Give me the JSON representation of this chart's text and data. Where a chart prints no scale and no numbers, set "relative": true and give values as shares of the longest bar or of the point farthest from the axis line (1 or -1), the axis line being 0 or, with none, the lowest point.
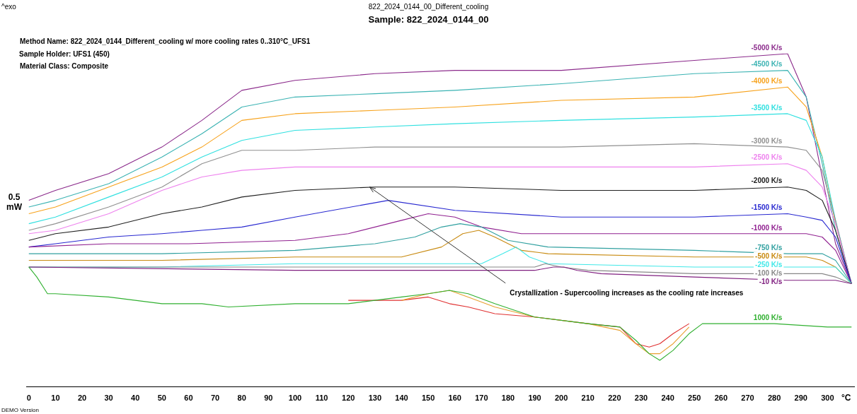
{
  "chart_data": {
    "type": "line",
    "title": "822_2024_0144_00_Different_cooling",
    "subtitle": "Sample: 822_2024_0144_00",
    "xlabel": "°C",
    "ylabel": "0.5 mW",
    "relative": true,
    "xlim": [
      -1,
      310
    ],
    "xticks": [
      0,
      10,
      20,
      30,
      40,
      50,
      60,
      70,
      80,
      90,
      100,
      110,
      120,
      130,
      140,
      150,
      160,
      170,
      180,
      190,
      200,
      210,
      220,
      230,
      240,
      250,
      260,
      270,
      280,
      290,
      300
    ],
    "grid": false,
    "legend": false,
    "marker": "none",
    "line_style": "solid",
    "annotations": [
      "^exo",
      "Method Name: 822_2024_0144_Different_cooling w/ more cooling rates 0..310°C_UFS1",
      "Sample Holder: UFS1 (450)",
      "Material Class: Composite",
      {
        "text": "Crystallization - Supercooling increases as the cooling rate increases",
        "x": 128,
        "y": 0.6
      },
      "DEMO Version"
    ],
    "series": [
      {
        "name": "-5000 K/s",
        "color": "#8b2a8b",
        "x": [
          0,
          10,
          30,
          50,
          65,
          80,
          100,
          130,
          160,
          200,
          250,
          285,
          292,
          298,
          303,
          309
        ],
        "values": [
          0.56,
          0.59,
          0.64,
          0.72,
          0.8,
          0.89,
          0.92,
          0.94,
          0.95,
          0.95,
          0.98,
          1,
          0.87,
          0.63,
          0.43,
          0.31
        ]
      },
      {
        "name": "-4500 K/s",
        "color": "#3bb3b3",
        "x": [
          0,
          10,
          30,
          50,
          65,
          80,
          100,
          130,
          160,
          200,
          250,
          285,
          292,
          298,
          303,
          309
        ],
        "values": [
          0.54,
          0.56,
          0.61,
          0.69,
          0.76,
          0.84,
          0.87,
          0.88,
          0.89,
          0.91,
          0.94,
          0.95,
          0.87,
          0.67,
          0.47,
          0.31
        ]
      },
      {
        "name": "-4000 K/s",
        "color": "#f7a21b",
        "x": [
          0,
          10,
          30,
          50,
          65,
          80,
          100,
          130,
          160,
          200,
          250,
          285,
          292,
          298,
          303,
          309
        ],
        "values": [
          0.52,
          0.54,
          0.6,
          0.66,
          0.72,
          0.8,
          0.82,
          0.83,
          0.84,
          0.86,
          0.87,
          0.9,
          0.84,
          0.69,
          0.49,
          0.31
        ]
      },
      {
        "name": "-3500 K/s",
        "color": "#30e0e0",
        "x": [
          0,
          10,
          30,
          50,
          65,
          80,
          100,
          130,
          160,
          200,
          250,
          285,
          292,
          298,
          303,
          309
        ],
        "values": [
          0.49,
          0.51,
          0.57,
          0.63,
          0.69,
          0.74,
          0.77,
          0.78,
          0.79,
          0.8,
          0.81,
          0.82,
          0.8,
          0.69,
          0.5,
          0.31
        ]
      },
      {
        "name": "-3000 K/s",
        "color": "#909090",
        "x": [
          0,
          10,
          30,
          50,
          65,
          80,
          100,
          130,
          160,
          200,
          250,
          285,
          292,
          298,
          303,
          309
        ],
        "values": [
          0.47,
          0.49,
          0.54,
          0.6,
          0.67,
          0.71,
          0.71,
          0.72,
          0.72,
          0.72,
          0.73,
          0.72,
          0.71,
          0.65,
          0.5,
          0.31
        ]
      },
      {
        "name": "-2500 K/s",
        "color": "#ee82ee",
        "x": [
          0,
          10,
          30,
          50,
          65,
          80,
          100,
          130,
          160,
          200,
          250,
          285,
          292,
          298,
          303,
          309
        ],
        "values": [
          0.46,
          0.47,
          0.52,
          0.59,
          0.63,
          0.65,
          0.66,
          0.66,
          0.66,
          0.66,
          0.66,
          0.67,
          0.65,
          0.6,
          0.49,
          0.31
        ]
      },
      {
        "name": "-2000 K/s",
        "color": "#202020",
        "x": [
          0,
          10,
          30,
          50,
          65,
          80,
          100,
          130,
          160,
          200,
          250,
          285,
          292,
          298,
          303,
          309
        ],
        "values": [
          0.44,
          0.46,
          0.48,
          0.52,
          0.54,
          0.57,
          0.59,
          0.6,
          0.6,
          0.59,
          0.59,
          0.6,
          0.59,
          0.56,
          0.47,
          0.31
        ]
      },
      {
        "name": "-1500 K/s",
        "color": "#2828d0",
        "x": [
          0,
          10,
          30,
          50,
          65,
          80,
          100,
          135,
          160,
          200,
          250,
          285,
          292,
          298,
          303,
          309
        ],
        "values": [
          0.42,
          0.43,
          0.45,
          0.46,
          0.47,
          0.48,
          0.51,
          0.56,
          0.53,
          0.51,
          0.51,
          0.52,
          0.51,
          0.5,
          0.45,
          0.31
        ]
      },
      {
        "name": "-1000 K/s",
        "color": "#902090",
        "x": [
          0,
          30,
          60,
          100,
          120,
          140,
          150,
          160,
          170,
          185,
          200,
          250,
          285,
          292,
          298,
          303,
          309
        ],
        "values": [
          0.42,
          0.43,
          0.43,
          0.44,
          0.46,
          0.5,
          0.52,
          0.51,
          0.48,
          0.46,
          0.46,
          0.46,
          0.46,
          0.46,
          0.45,
          0.41,
          0.31
        ]
      },
      {
        "name": "-750 K/s",
        "color": "#30a0a0",
        "x": [
          0,
          50,
          100,
          130,
          145,
          155,
          162,
          170,
          180,
          195,
          250,
          285,
          292,
          298,
          303,
          309
        ],
        "values": [
          0.4,
          0.4,
          0.41,
          0.43,
          0.45,
          0.48,
          0.49,
          0.48,
          0.44,
          0.42,
          0.41,
          0.4,
          0.4,
          0.4,
          0.38,
          0.31
        ]
      },
      {
        "name": "-500 K/s",
        "color": "#c88a10",
        "x": [
          0,
          50,
          100,
          140,
          155,
          163,
          169,
          175,
          185,
          195,
          250,
          285,
          292,
          298,
          303,
          309
        ],
        "values": [
          0.38,
          0.38,
          0.39,
          0.39,
          0.42,
          0.46,
          0.47,
          0.45,
          0.41,
          0.4,
          0.39,
          0.39,
          0.39,
          0.38,
          0.36,
          0.31
        ]
      },
      {
        "name": "-250 K/s",
        "color": "#40e8e8",
        "x": [
          0,
          50,
          100,
          170,
          178,
          183,
          188,
          195,
          250,
          285,
          292,
          298,
          303,
          309
        ],
        "values": [
          0.36,
          0.36,
          0.37,
          0.37,
          0.4,
          0.42,
          0.39,
          0.37,
          0.36,
          0.36,
          0.36,
          0.36,
          0.36,
          0.31
        ]
      },
      {
        "name": "-100 K/s",
        "color": "#888888",
        "x": [
          0,
          100,
          185,
          190,
          194,
          200,
          210,
          250,
          285,
          292,
          298,
          303,
          309
        ],
        "values": [
          0.36,
          0.36,
          0.36,
          0.36,
          0.37,
          0.36,
          0.35,
          0.34,
          0.34,
          0.34,
          0.34,
          0.33,
          0.31
        ]
      },
      {
        "name": "-10 K/s",
        "color": "#802080",
        "x": [
          0,
          100,
          190,
          197,
          201,
          206,
          215,
          250,
          285,
          292,
          298,
          303,
          309
        ],
        "values": [
          0.36,
          0.35,
          0.35,
          0.36,
          0.36,
          0.35,
          0.34,
          0.33,
          0.32,
          0.32,
          0.32,
          0.32,
          0.31
        ]
      },
      {
        "color": "#e03030",
        "x": [
          120,
          140,
          150,
          158,
          165,
          175,
          190,
          210,
          222,
          228,
          233,
          237,
          242,
          248
        ],
        "values": [
          0.26,
          0.26,
          0.27,
          0.25,
          0.24,
          0.22,
          0.21,
          0.19,
          0.18,
          0.13,
          0.12,
          0.13,
          0.16,
          0.19
        ]
      },
      {
        "color": "#e8a030",
        "x": [
          140,
          150,
          158,
          165,
          175,
          190,
          210,
          222,
          228,
          233,
          237,
          242,
          248
        ],
        "values": [
          0.26,
          0.28,
          0.29,
          0.27,
          0.24,
          0.21,
          0.19,
          0.17,
          0.13,
          0.1,
          0.1,
          0.13,
          0.18
        ]
      },
      {
        "name": "1000 K/s",
        "color": "#30b030",
        "x": [
          0,
          3,
          7,
          10,
          30,
          50,
          65,
          75,
          100,
          120,
          140,
          150,
          158,
          165,
          175,
          190,
          210,
          222,
          228,
          233,
          237,
          242,
          248,
          253,
          260,
          280,
          300,
          309
        ],
        "values": [
          0.36,
          0.33,
          0.28,
          0.28,
          0.27,
          0.25,
          0.25,
          0.24,
          0.25,
          0.25,
          0.27,
          0.28,
          0.29,
          0.28,
          0.25,
          0.21,
          0.19,
          0.18,
          0.14,
          0.1,
          0.08,
          0.11,
          0.16,
          0.19,
          0.19,
          0.19,
          0.18,
          0.18
        ]
      }
    ]
  }
}
